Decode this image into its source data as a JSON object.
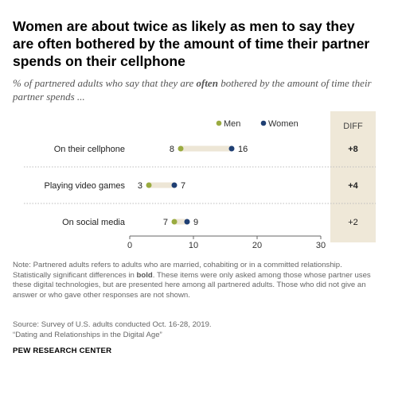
{
  "title": "Women are about twice as likely as men to say they are often bothered by the amount of time their partner spends on their cellphone",
  "subtitle": {
    "before": "% of partnered adults who say that they are ",
    "emph": "often",
    "after": " bothered by the amount of time their partner spends ..."
  },
  "note": {
    "before": "Note: Partnered adults refers to adults who are married, cohabiting or in a committed relationship. Statistically significant differences in ",
    "bold": "bold",
    "after": ". These items were only asked among those whose partner uses these digital technologies, but are presented here among all partnered adults. Those who did not give an answer or who gave other responses are not shown."
  },
  "source_line1": "Source: Survey of U.S. adults conducted Oct. 16-28, 2019.",
  "source_line2": "“Dating and Relationships in the Digital Age”",
  "brand": "PEW RESEARCH CENTER",
  "colors": {
    "men": "#9aab40",
    "women": "#1f3f73",
    "connector": "#ede6d6",
    "diff_panel": "#efe8d8",
    "grid": "#bdbdbd"
  },
  "chart_data": {
    "type": "dot",
    "categories": [
      "On their cellphone",
      "Playing video games",
      "On social media"
    ],
    "series": [
      {
        "name": "Men",
        "values": [
          8,
          3,
          7
        ]
      },
      {
        "name": "Women",
        "values": [
          16,
          7,
          9
        ]
      }
    ],
    "diff_label": "DIFF",
    "diff": [
      "+8",
      "+4",
      "+2"
    ],
    "diff_significant": [
      true,
      true,
      false
    ],
    "xlim": [
      0,
      30
    ],
    "xticks": [
      0,
      10,
      20,
      30
    ],
    "legend_position": "top"
  }
}
